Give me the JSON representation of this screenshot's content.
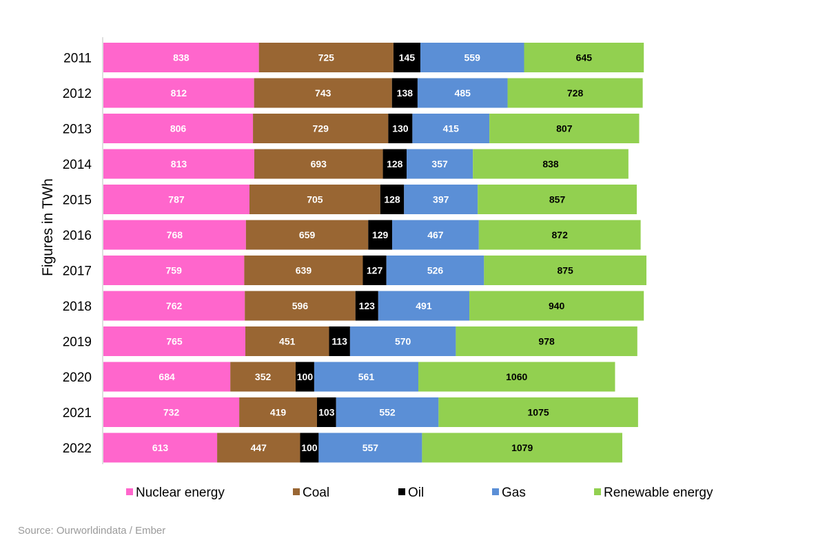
{
  "chart_data": {
    "type": "bar",
    "orientation": "horizontal",
    "stacked": true,
    "ylabel": "Figures in TWh",
    "categories": [
      "2011",
      "2012",
      "2013",
      "2014",
      "2015",
      "2016",
      "2017",
      "2018",
      "2019",
      "2020",
      "2021",
      "2022"
    ],
    "series": [
      {
        "name": "Nuclear energy",
        "color": "#ff66cc",
        "label_color": "#ffffff",
        "values": [
          838,
          812,
          806,
          813,
          787,
          768,
          759,
          762,
          765,
          684,
          732,
          613
        ]
      },
      {
        "name": "Coal",
        "color": "#996633",
        "label_color": "#ffffff",
        "values": [
          725,
          743,
          729,
          693,
          705,
          659,
          639,
          596,
          451,
          352,
          419,
          447
        ]
      },
      {
        "name": "Oil",
        "color": "#000000",
        "label_color": "#ffffff",
        "values": [
          145,
          138,
          130,
          128,
          128,
          129,
          127,
          123,
          113,
          100,
          103,
          100
        ]
      },
      {
        "name": "Gas",
        "color": "#5b8fd6",
        "label_color": "#ffffff",
        "values": [
          559,
          485,
          415,
          357,
          397,
          467,
          526,
          491,
          570,
          561,
          552,
          557
        ]
      },
      {
        "name": "Renewable energy",
        "color": "#92d050",
        "label_color": "#000000",
        "values": [
          645,
          728,
          807,
          838,
          857,
          872,
          875,
          940,
          978,
          1060,
          1075,
          1079
        ]
      }
    ],
    "legend_position": "bottom",
    "grid": false
  },
  "source": "Source: Ourworldindata / Ember"
}
